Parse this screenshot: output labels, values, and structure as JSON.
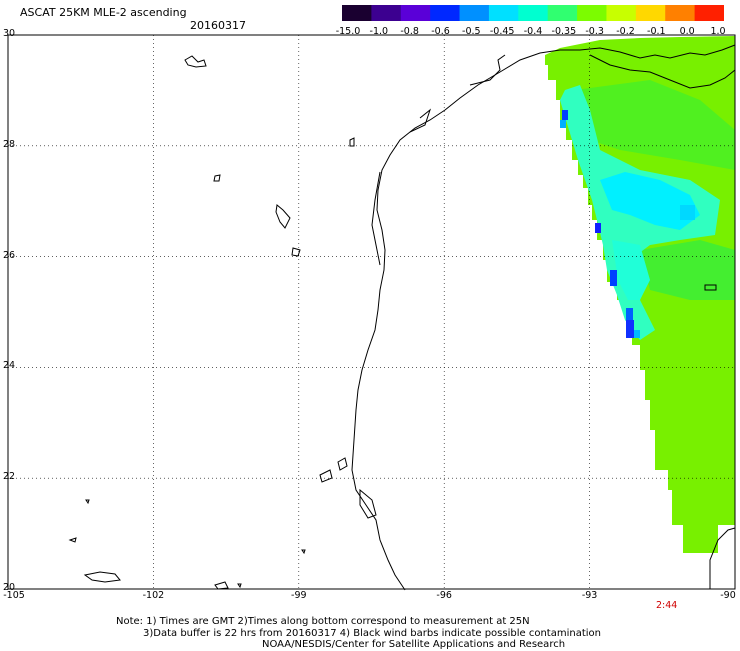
{
  "header": {
    "title": "ASCAT 25KM MLE-2 ascending",
    "date": "20160317"
  },
  "colorbar": {
    "ticks": [
      "-15.0",
      "-1.0",
      "-0.8",
      "-0.6",
      "-0.5",
      "-0.45",
      "-0.4",
      "-0.35",
      "-0.3",
      "-0.2",
      "-0.1",
      "0.0",
      "1.0"
    ],
    "colors": [
      "#1a0030",
      "#3c0090",
      "#5a00d8",
      "#0028ff",
      "#0090ff",
      "#00e0ff",
      "#00ffd0",
      "#30ff70",
      "#7cfc00",
      "#c8ff00",
      "#ffd800",
      "#ff8000",
      "#ff2000"
    ]
  },
  "axes": {
    "lat_labels": [
      "30",
      "28",
      "26",
      "24",
      "22",
      "20"
    ],
    "lon_labels": [
      "-105",
      "-102",
      "-99",
      "-96",
      "-93",
      "-90"
    ]
  },
  "pass_time": "2:44",
  "notes": {
    "line1": "Note: 1) Times are GMT 2)Times along bottom correspond to measurement at 25N",
    "line2": "3)Data buffer is 22 hrs from 20160317 4) Black wind barbs indicate possible contamination",
    "line3": "NOAA/NESDIS/Center for Satellite Applications and Research"
  }
}
